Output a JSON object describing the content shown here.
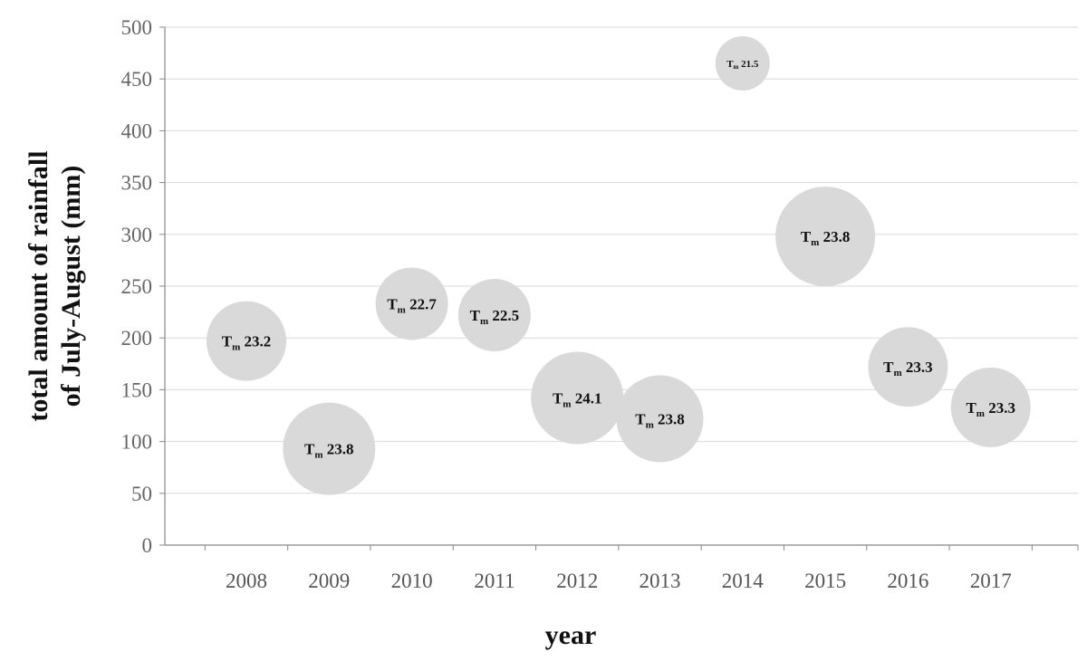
{
  "chart_data": {
    "type": "scatter",
    "variant": "bubble",
    "title": "",
    "xlabel": "year",
    "ylabel_lines": [
      "total amount of rainfall",
      "of July-August (mm)"
    ],
    "ylim": [
      0,
      500
    ],
    "yticks": [
      0,
      50,
      100,
      150,
      200,
      250,
      300,
      350,
      400,
      450,
      500
    ],
    "categories": [
      "2008",
      "2009",
      "2010",
      "2011",
      "2012",
      "2013",
      "2014",
      "2015",
      "2016",
      "2017"
    ],
    "grid": "horizontal",
    "bubble_color": "#d9d9d9",
    "series": [
      {
        "values": [
          197,
          93,
          233,
          222,
          142,
          122,
          465,
          298,
          172,
          133
        ],
        "labels": [
          "23.2",
          "23.8",
          "22.7",
          "22.5",
          "24.1",
          "23.8",
          "21.5",
          "23.8",
          "23.3",
          "23.3"
        ],
        "label_prefix": "T",
        "label_subscript": "m",
        "relative_size": [
          44,
          51,
          40,
          40,
          51,
          48,
          30,
          55,
          44,
          44
        ]
      }
    ]
  }
}
